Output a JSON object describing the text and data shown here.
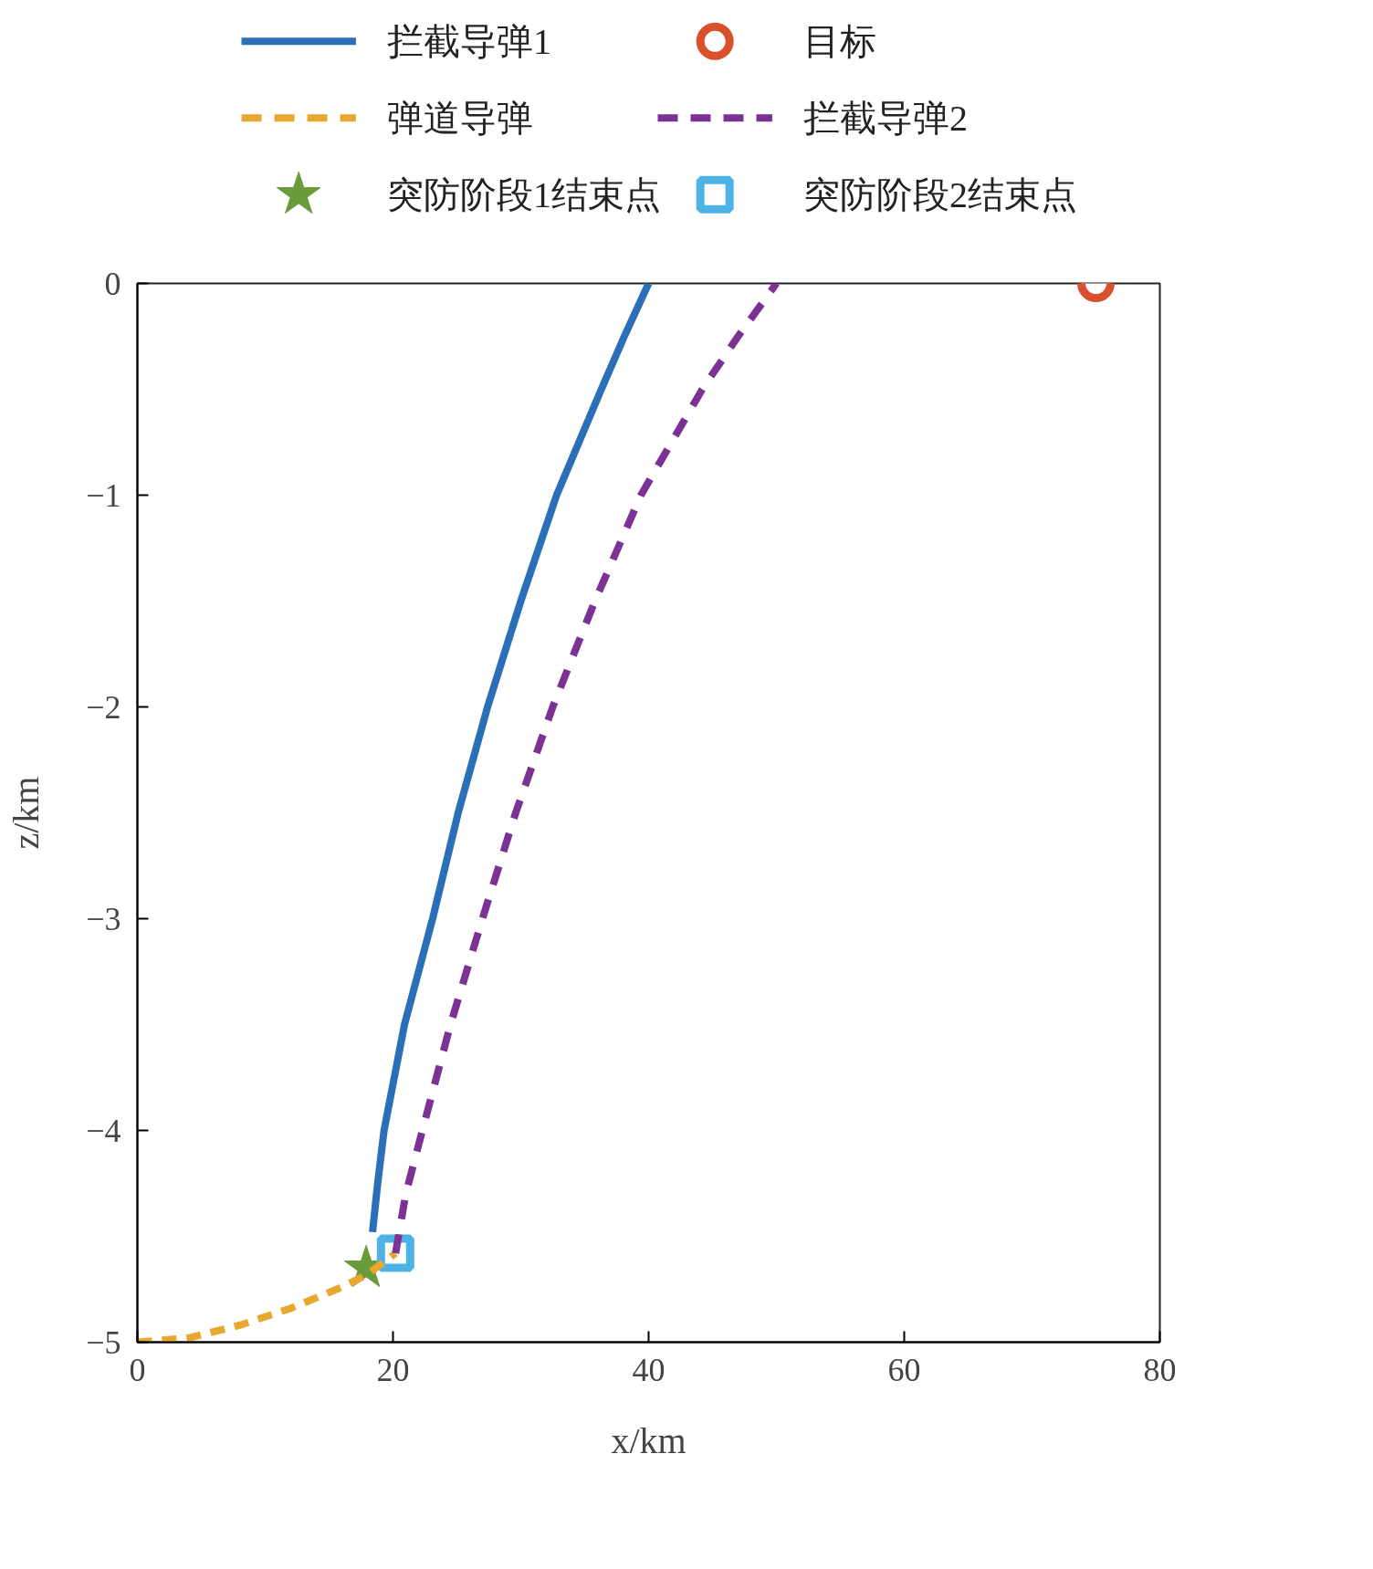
{
  "chart_data": {
    "type": "line",
    "xlabel": "x/km",
    "ylabel": "z/km",
    "xlim": [
      0,
      80
    ],
    "ylim": [
      -5,
      0
    ],
    "xticks": [
      0,
      20,
      40,
      60,
      80
    ],
    "yticks": [
      {
        "value": -5,
        "label": "−5"
      },
      {
        "value": -4,
        "label": "−4"
      },
      {
        "value": -3,
        "label": "−3"
      },
      {
        "value": -2,
        "label": "−2"
      },
      {
        "value": -1,
        "label": "−1"
      },
      0
    ],
    "grid": false,
    "legend": "top",
    "series": [
      {
        "name": "拦截导弹1",
        "color": "#2a6fb8",
        "line_style": "solid",
        "x": [
          18.4,
          18.8,
          19.3,
          20.9,
          23.1,
          25.1,
          27.4,
          30.0,
          32.8,
          36.3,
          38.1,
          40
        ],
        "values": [
          -4.48,
          -4.25,
          -4,
          -3.5,
          -3,
          -2.5,
          -2,
          -1.5,
          -1,
          -0.5,
          -0.25,
          0
        ]
      },
      {
        "name": "目标",
        "type": "scatter",
        "marker": "circle",
        "color": "#d9512c",
        "x": [
          75
        ],
        "values": [
          0
        ]
      },
      {
        "name": "弹道导弹",
        "color": "#e8a830",
        "line_style": "dashed",
        "x": [
          0,
          4,
          8,
          12,
          16,
          18,
          20.2
        ],
        "values": [
          -5,
          -4.98,
          -4.92,
          -4.84,
          -4.74,
          -4.68,
          -4.58
        ]
      },
      {
        "name": "拦截导弹2",
        "color": "#7b3294",
        "line_style": "dashed",
        "x": [
          20.2,
          21.0,
          22.3,
          24.5,
          27.0,
          29.6,
          32.5,
          35.8,
          39.4,
          44.2,
          47.0,
          50
        ],
        "values": [
          -4.58,
          -4.3,
          -4,
          -3.5,
          -3,
          -2.5,
          -2,
          -1.5,
          -1,
          -0.5,
          -0.25,
          0
        ]
      },
      {
        "name": "突防阶段1结束点",
        "type": "scatter",
        "marker": "star",
        "color": "#6a9a3a",
        "x": [
          17.9
        ],
        "values": [
          -4.65
        ]
      },
      {
        "name": "突防阶段2结束点",
        "type": "scatter",
        "marker": "square",
        "color": "#4db3e6",
        "x": [
          20.2
        ],
        "values": [
          -4.58
        ]
      }
    ]
  }
}
